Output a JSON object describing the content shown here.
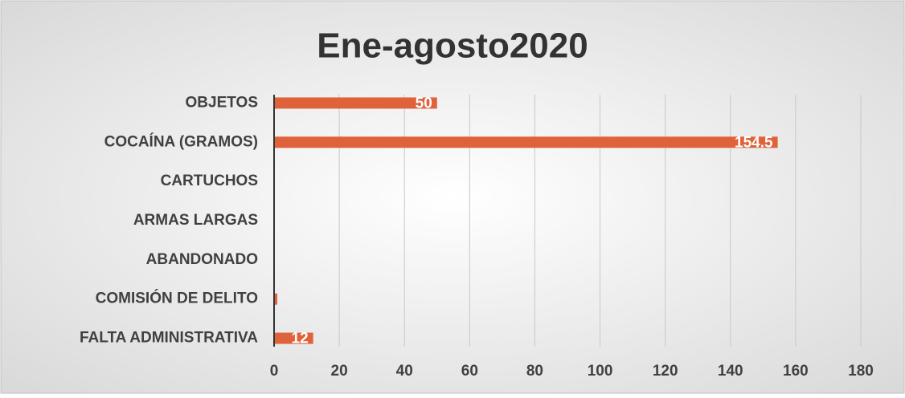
{
  "chart_data": {
    "type": "bar",
    "orientation": "horizontal",
    "title": "Ene-agosto2020",
    "categories": [
      "OBJETOS",
      "COCAÍNA (GRAMOS)",
      "CARTUCHOS",
      "ARMAS LARGAS",
      "ABANDONADO",
      "COMISIÓN DE DELITO",
      "FALTA ADMINISTRATIVA"
    ],
    "values": [
      50,
      154.5,
      0,
      0,
      0,
      1,
      12
    ],
    "value_labels": [
      "50",
      "154.5",
      null,
      null,
      null,
      null,
      "12"
    ],
    "color": "#e0623a",
    "xlim": [
      0,
      180
    ],
    "xticks": [
      0,
      20,
      40,
      60,
      80,
      100,
      120,
      140,
      160,
      180
    ],
    "grid": true
  }
}
